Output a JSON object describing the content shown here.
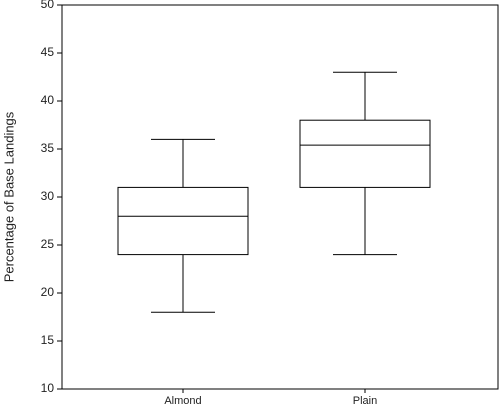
{
  "chart_data": {
    "type": "box",
    "ylabel": "Percentage of Base Landings",
    "categories": [
      "Almond",
      "Plain"
    ],
    "boxes": [
      {
        "whisker_low": 18,
        "q1": 24,
        "median": 28,
        "q3": 31,
        "whisker_high": 36
      },
      {
        "whisker_low": 24,
        "q1": 31,
        "median": 35.4,
        "q3": 38,
        "whisker_high": 43
      }
    ],
    "ylim": [
      10,
      50
    ],
    "yticks": [
      10,
      15,
      20,
      25,
      30,
      35,
      40,
      45,
      50
    ],
    "color": "#000000",
    "grid": false
  }
}
